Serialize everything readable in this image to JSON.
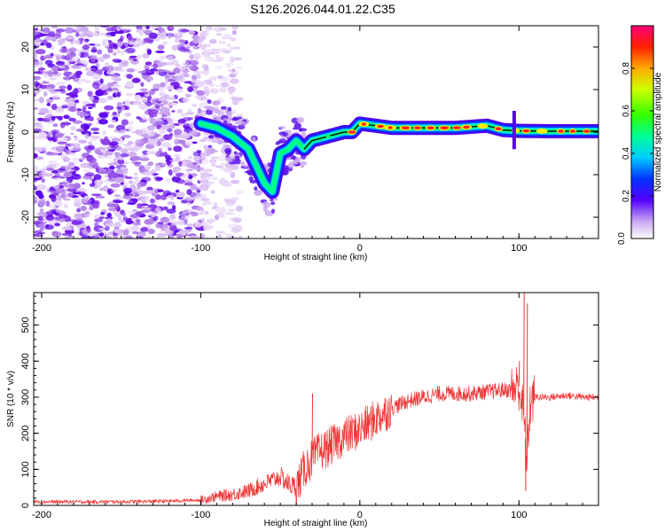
{
  "title": "S126.2026.044.01.22.C35",
  "chart_data": [
    {
      "type": "heatmap",
      "xlabel": "Height of straight line (km)",
      "ylabel": "Frequency (Hz)",
      "xlim": [
        -205,
        150
      ],
      "ylim": [
        -25,
        25
      ],
      "xticks": [
        -200,
        -100,
        0,
        100
      ],
      "yticks": [
        20,
        10,
        0,
        -10,
        -20
      ],
      "colorbar": {
        "label": "Normalized spectral amplitude",
        "range": [
          0,
          1
        ],
        "ticks": [
          "0.0",
          "0.2",
          "0.4",
          "0.6",
          "0.8"
        ]
      },
      "ridge": {
        "x": [
          -100,
          -90,
          -80,
          -70,
          -60,
          -55,
          -50,
          -45,
          -40,
          -35,
          -30,
          -20,
          -10,
          -5,
          0,
          20,
          40,
          60,
          80,
          90,
          100,
          120,
          140,
          150
        ],
        "y": [
          2,
          1,
          -1,
          -4,
          -12,
          -14,
          -5,
          -4,
          -2,
          -4,
          -2,
          -1,
          0,
          0,
          2,
          1,
          1,
          1,
          1.5,
          0.5,
          0.3,
          0.2,
          0.2,
          0.2
        ]
      }
    },
    {
      "type": "line",
      "xlabel": "Height of straight line (km)",
      "ylabel": "SNR (10 * v/v)",
      "xlim": [
        -205,
        150
      ],
      "ylim": [
        0,
        590
      ],
      "xticks": [
        -200,
        -100,
        0,
        100
      ],
      "yticks": [
        0,
        100,
        200,
        300,
        400,
        500
      ],
      "color": "#ee3333",
      "envelope": {
        "x": [
          -205,
          -150,
          -120,
          -100,
          -90,
          -80,
          -70,
          -60,
          -50,
          -45,
          -40,
          -35,
          -30,
          -25,
          -20,
          -15,
          -10,
          -5,
          0,
          10,
          20,
          30,
          40,
          50,
          60,
          70,
          80,
          90,
          95,
          100,
          103,
          105,
          107,
          110,
          120,
          130,
          140,
          150
        ],
        "y": [
          10,
          10,
          12,
          15,
          25,
          30,
          40,
          60,
          80,
          60,
          50,
          100,
          130,
          150,
          160,
          175,
          190,
          200,
          210,
          240,
          270,
          290,
          300,
          310,
          310,
          310,
          315,
          320,
          320,
          330,
          250,
          120,
          280,
          300,
          300,
          305,
          300,
          300
        ]
      },
      "spikes": [
        {
          "x": -30,
          "y": 310
        },
        {
          "x": 100,
          "y": 400
        },
        {
          "x": 103,
          "y": 590
        },
        {
          "x": 104,
          "y": 40
        },
        {
          "x": 105,
          "y": 560
        }
      ]
    }
  ]
}
